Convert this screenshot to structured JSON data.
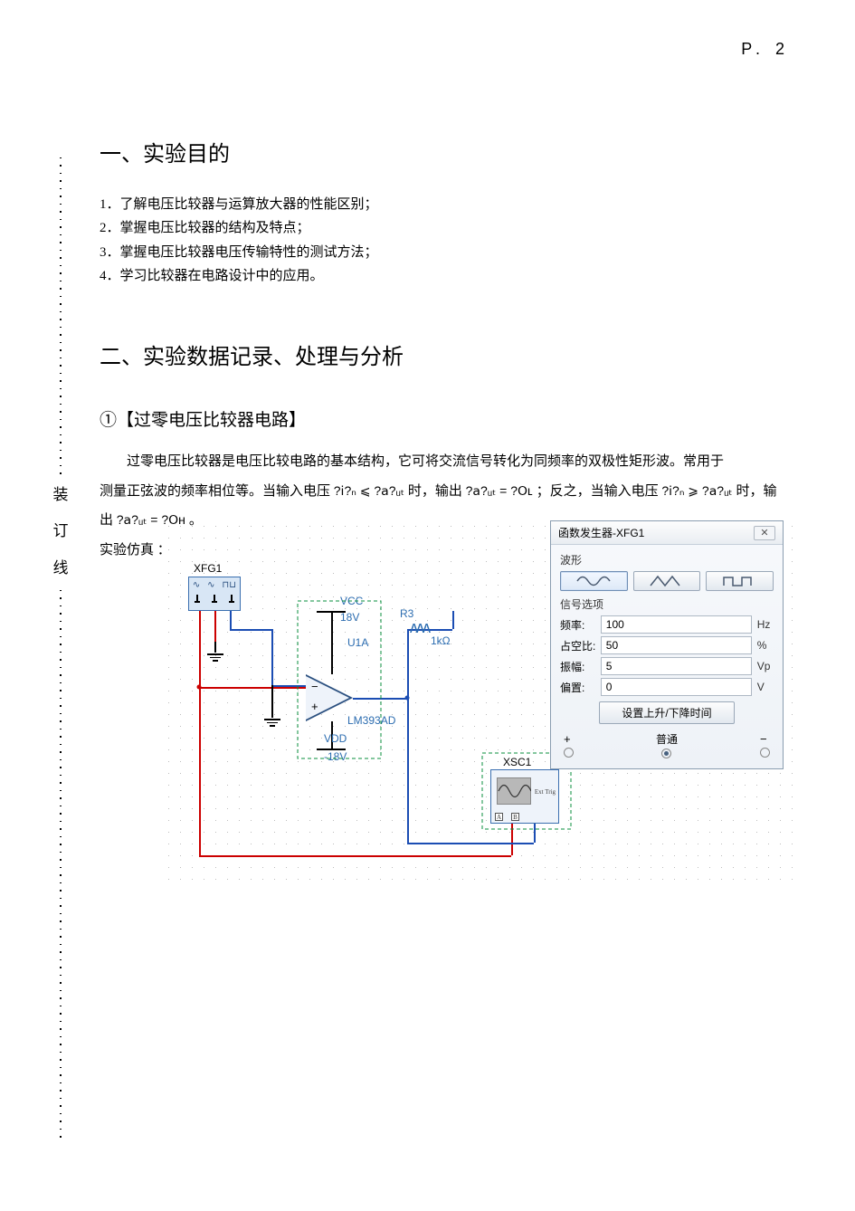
{
  "page_number": "P. 2",
  "binding": {
    "c1": "装",
    "c2": "订",
    "c3": "线"
  },
  "section1_title": "一、实验目的",
  "objectives": [
    "1．了解电压比较器与运算放大器的性能区别；",
    "2．掌握电压比较器的结构及特点；",
    "3．掌握电压比较器电压传输特性的测试方法；",
    "4．学习比较器在电路设计中的应用。"
  ],
  "section2_title": "二、实验数据记录、处理与分析",
  "sub1_title": "①【过零电压比较器电路】",
  "para1_a": "过零电压比较器是电压比较电路的基本结构，它可将交流信号转化为同频率的双极性矩形波。常用于",
  "para1_b_prefix": "测量正弦波的频率相位等。当输入电压   ",
  "para1_b_mid": " 时，输出 ",
  "para1_b_mid2": " ；反之，当输入电压  ",
  "para1_b_end": " 时，输",
  "para1_c_prefix": "出",
  "para1_c_end": "。",
  "sim_label": "实验仿真 ：",
  "formulas": {
    "f1_lhs": "?𝗂?ₙ",
    "f1_op": "⩽",
    "f1_rhs": "?𝖺?ᵤₜ",
    "f2_lhs": "?𝖺?ᵤₜ",
    "f2_eq": "=",
    "f2_rhs": "?𝖮ʟ",
    "f3_lhs": "?𝗂?ₙ",
    "f3_op": "⩾",
    "f3_rhs": "?𝖺?ᵤₜ",
    "f4_lhs": "?𝖺?ᵤₜ",
    "f4_eq": "=",
    "f4_rhs": "?𝖮ʜ"
  },
  "circuit": {
    "xfg_label": "XFG1",
    "vcc": "VCC",
    "vcc_val": "18V",
    "vdd": "VDD",
    "vdd_val": "-18V",
    "ic_ref": "U1A",
    "ic_part": "LM393AD",
    "r_ref": "R3",
    "r_val": "1kΩ",
    "r_symbol": "ʌʌʌ",
    "xsc_label": "XSC1",
    "xsc_ext": "Ext Trig"
  },
  "fgen": {
    "title": "函数发生器-XFG1",
    "close": "✕",
    "wave_group": "波形",
    "signal_group": "信号选项",
    "rows": {
      "freq": {
        "label": "频率:",
        "value": "100",
        "unit": "Hz"
      },
      "duty": {
        "label": "占空比:",
        "value": "50",
        "unit": "%"
      },
      "amp": {
        "label": "振幅:",
        "value": "5",
        "unit": "Vp"
      },
      "offset": {
        "label": "偏置:",
        "value": "0",
        "unit": "V"
      }
    },
    "rise_btn": "设置上升/下降时间",
    "plus": "+",
    "center": "普通",
    "minus": "−"
  },
  "colors": {
    "wire_red": "#cc0000",
    "wire_blue": "#1b4db3",
    "wire_green": "#0a8f3c",
    "label_blue": "#2b6cb0",
    "panel_border": "#8a9db0"
  }
}
